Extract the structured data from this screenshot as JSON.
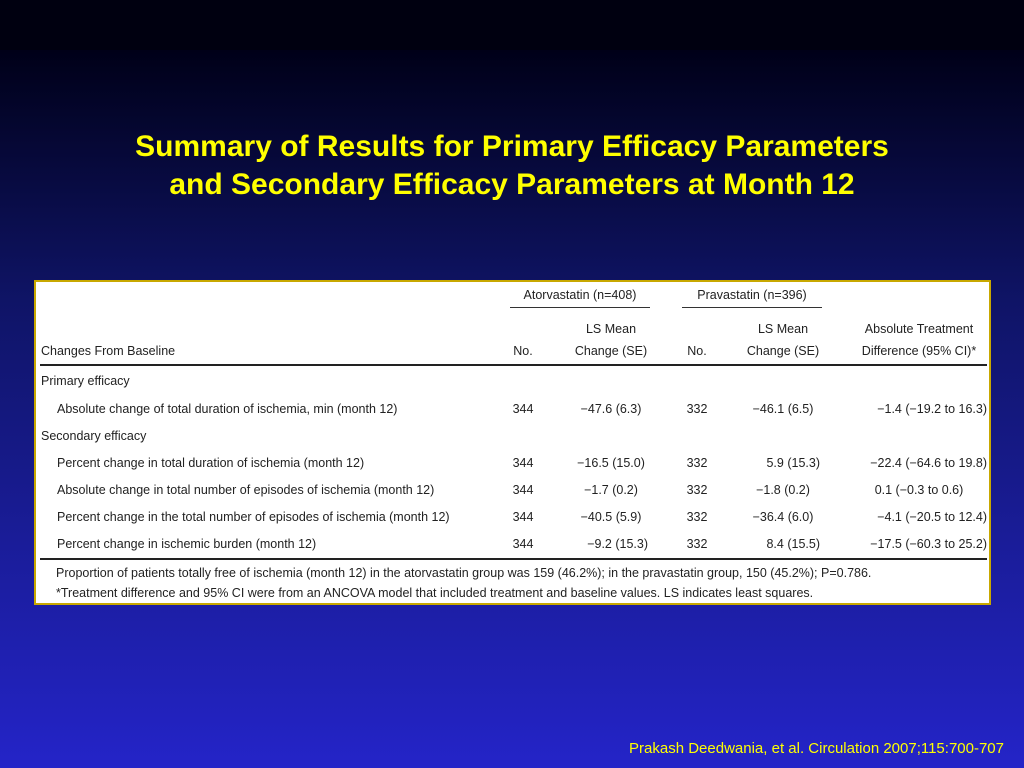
{
  "slide": {
    "title_line1": "Summary of Results for Primary Efficacy Parameters",
    "title_line2": "and Secondary Efficacy Parameters at Month 12",
    "citation": "Prakash Deedwania, et al. Circulation 2007;115:700-707"
  },
  "table": {
    "group_headers": {
      "atorvastatin": "Atorvastatin (n=408)",
      "pravastatin": "Pravastatin (n=396)"
    },
    "columns": {
      "changes": "Changes From Baseline",
      "no_a": "No.",
      "ls_a_1": "LS Mean",
      "ls_a_2": "Change (SE)",
      "no_p": "No.",
      "ls_p_1": "LS Mean",
      "ls_p_2": "Change (SE)",
      "abs_1": "Absolute Treatment",
      "abs_2": "Difference (95% CI)*"
    },
    "sections": {
      "primary": "Primary efficacy",
      "secondary": "Secondary efficacy"
    },
    "rows": [
      {
        "label": "Absolute change of total duration of ischemia, min (month 12)",
        "no_a": "344",
        "ls_a": "−47.6 (6.3)",
        "no_p": "332",
        "ls_p": "−46.1 (6.5)",
        "diff": "−1.4 (−19.2 to 16.3)"
      },
      {
        "label": "Percent change in total duration of ischemia (month 12)",
        "no_a": "344",
        "ls_a": "−16.5 (15.0)",
        "no_p": "332",
        "ls_p": "5.9 (15.3)",
        "diff": "−22.4 (−64.6 to 19.8)"
      },
      {
        "label": "Absolute change in total number of episodes of ischemia (month 12)",
        "no_a": "344",
        "ls_a": "−1.7 (0.2)",
        "no_p": "332",
        "ls_p": "−1.8 (0.2)",
        "diff": "0.1 (−0.3 to 0.6)"
      },
      {
        "label": "Percent change in the total number of episodes of ischemia (month 12)",
        "no_a": "344",
        "ls_a": "−40.5 (5.9)",
        "no_p": "332",
        "ls_p": "−36.4 (6.0)",
        "diff": "−4.1 (−20.5 to 12.4)"
      },
      {
        "label": "Percent change in ischemic burden (month 12)",
        "no_a": "344",
        "ls_a": "−9.2 (15.3)",
        "no_p": "332",
        "ls_p": "8.4 (15.5)",
        "diff": "−17.5 (−60.3 to 25.2)"
      }
    ],
    "footnotes": {
      "line1": "Proportion of patients totally free of ischemia (month 12) in the atorvastatin group was 159 (46.2%); in the pravastatin group, 150 (45.2%); P=0.786.",
      "line2": "*Treatment difference and 95% CI were from an ANCOVA model that included treatment and baseline values. LS indicates least squares."
    }
  }
}
